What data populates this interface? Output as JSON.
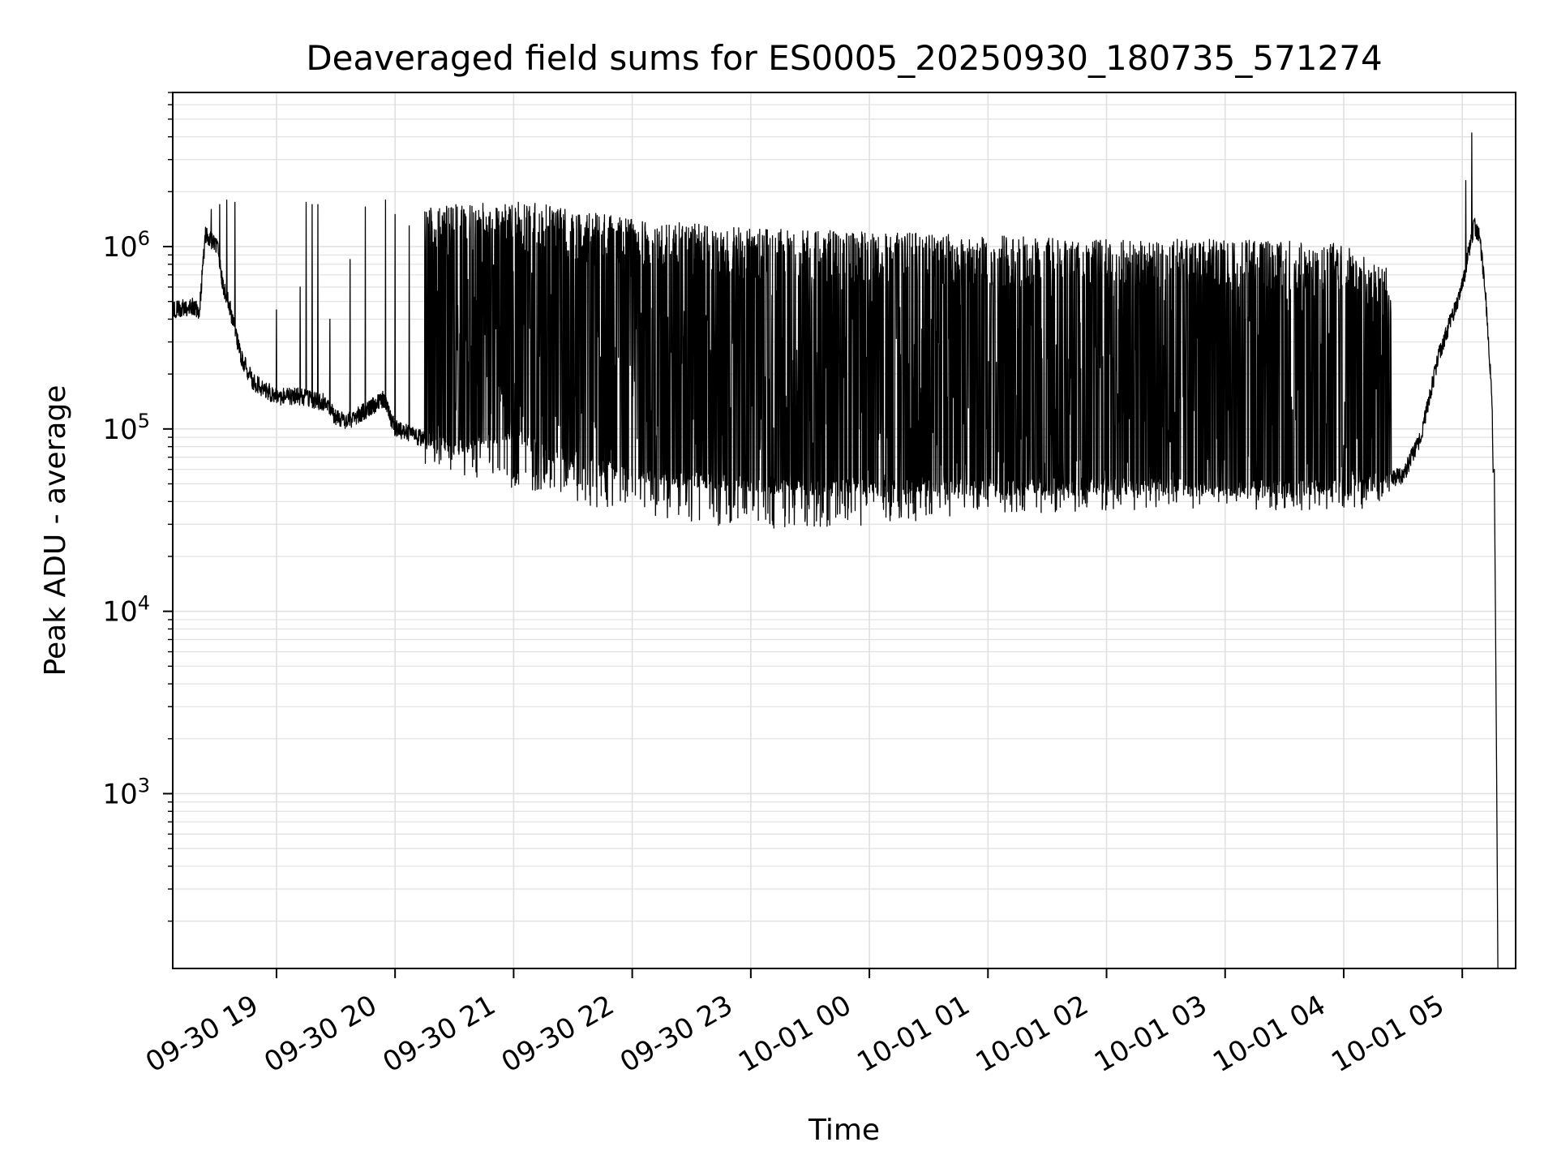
{
  "chart_data": {
    "type": "line",
    "title": "Deaveraged field sums for ES0005_20250930_180735_571274",
    "xlabel": "Time",
    "ylabel": "Peak ADU - average",
    "yscale": "log",
    "ylim": [
      110,
      7000000
    ],
    "xlim_hours": [
      18.125,
      29.45
    ],
    "grid": true,
    "line_color": "#000000",
    "xticks": [
      {
        "hour": 19,
        "label": "09-30 19"
      },
      {
        "hour": 20,
        "label": "09-30 20"
      },
      {
        "hour": 21,
        "label": "09-30 21"
      },
      {
        "hour": 22,
        "label": "09-30 22"
      },
      {
        "hour": 23,
        "label": "09-30 23"
      },
      {
        "hour": 24,
        "label": "10-01 00"
      },
      {
        "hour": 25,
        "label": "10-01 01"
      },
      {
        "hour": 26,
        "label": "10-01 02"
      },
      {
        "hour": 27,
        "label": "10-01 03"
      },
      {
        "hour": 28,
        "label": "10-01 04"
      },
      {
        "hour": 29,
        "label": "10-01 05"
      }
    ],
    "yticks": [
      {
        "exp": 3,
        "label": "10",
        "sup": "3"
      },
      {
        "exp": 4,
        "label": "10",
        "sup": "4"
      },
      {
        "exp": 5,
        "label": "10",
        "sup": "5"
      },
      {
        "exp": 6,
        "label": "10",
        "sup": "6"
      }
    ],
    "series": [
      {
        "name": "Deaveraged field sum",
        "baseline": [
          [
            18.13,
            450000
          ],
          [
            18.3,
            470000
          ],
          [
            18.35,
            440000
          ],
          [
            18.4,
            1150000
          ],
          [
            18.5,
            1000000
          ],
          [
            18.55,
            600000
          ],
          [
            18.6,
            480000
          ],
          [
            18.7,
            250000
          ],
          [
            18.8,
            180000
          ],
          [
            19.0,
            150000
          ],
          [
            19.2,
            150000
          ],
          [
            19.4,
            140000
          ],
          [
            19.5,
            115000
          ],
          [
            19.6,
            110000
          ],
          [
            19.75,
            125000
          ],
          [
            19.9,
            145000
          ],
          [
            20.0,
            100000
          ],
          [
            20.3,
            85000
          ],
          [
            20.5,
            80000
          ],
          [
            20.8,
            85000
          ],
          [
            21.0,
            95000
          ],
          [
            21.3,
            70000
          ],
          [
            21.6,
            63000
          ],
          [
            22.0,
            57000
          ],
          [
            22.5,
            52000
          ],
          [
            23.0,
            50000
          ],
          [
            23.5,
            47000
          ],
          [
            24.0,
            47000
          ],
          [
            24.5,
            47000
          ],
          [
            25.0,
            48000
          ],
          [
            25.5,
            48000
          ],
          [
            26.0,
            48000
          ],
          [
            26.5,
            48000
          ],
          [
            27.0,
            47000
          ],
          [
            27.5,
            47000
          ],
          [
            28.0,
            47000
          ],
          [
            28.5,
            55000
          ],
          [
            28.65,
            90000
          ],
          [
            28.8,
            250000
          ],
          [
            29.0,
            600000
          ],
          [
            29.05,
            900000
          ],
          [
            29.1,
            1300000
          ],
          [
            29.15,
            1100000
          ],
          [
            29.2,
            500000
          ],
          [
            29.25,
            150000
          ],
          [
            29.28,
            10000
          ],
          [
            29.3,
            110
          ]
        ],
        "envelope_top": [
          [
            20.25,
            1600000
          ],
          [
            21.0,
            1700000
          ],
          [
            21.5,
            1550000
          ],
          [
            22.0,
            1350000
          ],
          [
            23.0,
            1200000
          ],
          [
            24.0,
            1150000
          ],
          [
            25.0,
            1100000
          ],
          [
            26.0,
            1050000
          ],
          [
            27.0,
            1050000
          ],
          [
            28.0,
            1000000
          ],
          [
            28.4,
            700000
          ]
        ],
        "envelope_bottom": [
          [
            20.25,
            75000
          ],
          [
            21.0,
            55000
          ],
          [
            22.0,
            40000
          ],
          [
            23.0,
            33000
          ],
          [
            24.0,
            35000
          ],
          [
            25.0,
            40000
          ],
          [
            26.0,
            42000
          ],
          [
            27.0,
            42000
          ],
          [
            28.0,
            42000
          ],
          [
            28.4,
            45000
          ]
        ],
        "isolated_spikes": [
          [
            18.45,
            1600000
          ],
          [
            18.52,
            1700000
          ],
          [
            18.58,
            1800000
          ],
          [
            18.65,
            1750000
          ],
          [
            19.0,
            450000
          ],
          [
            19.2,
            600000
          ],
          [
            19.25,
            1750000
          ],
          [
            19.3,
            1700000
          ],
          [
            19.35,
            1700000
          ],
          [
            19.45,
            400000
          ],
          [
            19.62,
            850000
          ],
          [
            19.75,
            1650000
          ],
          [
            19.92,
            1800000
          ],
          [
            20.0,
            1500000
          ],
          [
            20.12,
            1300000
          ],
          [
            20.25,
            1550000
          ]
        ],
        "peaks": [
          {
            "hour": 29.03,
            "value": 2300000
          },
          {
            "hour": 29.08,
            "value": 4200000
          }
        ]
      }
    ]
  }
}
